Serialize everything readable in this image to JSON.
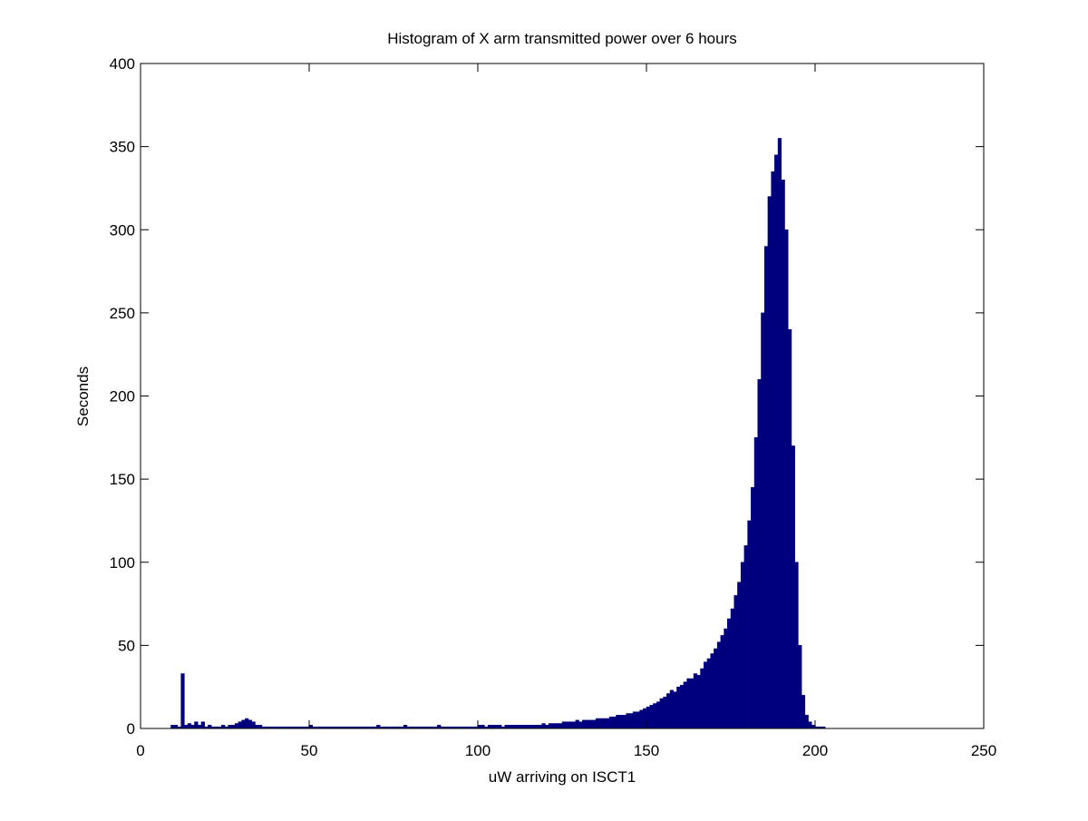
{
  "chart_data": {
    "type": "histogram",
    "title": "Histogram of X arm transmitted power over 6 hours",
    "x_label": "uW arriving on ISCT1",
    "y_label": "Seconds",
    "color": "#00007f",
    "xlim": [
      0,
      250
    ],
    "xticks": [
      0,
      50,
      100,
      150,
      200,
      250
    ],
    "ylim": [
      0,
      400
    ],
    "yticks": [
      0,
      50,
      100,
      150,
      200,
      250,
      300,
      350,
      400
    ],
    "bins": [
      9,
      10,
      11,
      12,
      13,
      14,
      15,
      16,
      17,
      18,
      19,
      20,
      21,
      22,
      23,
      24,
      25,
      26,
      27,
      28,
      29,
      30,
      31,
      32,
      33,
      34,
      35,
      36,
      37,
      38,
      39,
      40,
      41,
      42,
      43,
      44,
      45,
      46,
      47,
      48,
      49,
      50,
      51,
      52,
      53,
      54,
      55,
      56,
      57,
      58,
      59,
      60,
      61,
      62,
      63,
      64,
      65,
      66,
      67,
      68,
      69,
      70,
      71,
      72,
      73,
      74,
      75,
      76,
      77,
      78,
      79,
      80,
      81,
      82,
      83,
      84,
      85,
      86,
      87,
      88,
      89,
      90,
      91,
      92,
      93,
      94,
      95,
      96,
      97,
      98,
      99,
      100,
      101,
      102,
      103,
      104,
      105,
      106,
      107,
      108,
      109,
      110,
      111,
      112,
      113,
      114,
      115,
      116,
      117,
      118,
      119,
      120,
      121,
      122,
      123,
      124,
      125,
      126,
      127,
      128,
      129,
      130,
      131,
      132,
      133,
      134,
      135,
      136,
      137,
      138,
      139,
      140,
      141,
      142,
      143,
      144,
      145,
      146,
      147,
      148,
      149,
      150,
      151,
      152,
      153,
      154,
      155,
      156,
      157,
      158,
      159,
      160,
      161,
      162,
      163,
      164,
      165,
      166,
      167,
      168,
      169,
      170,
      171,
      172,
      173,
      174,
      175,
      176,
      177,
      178,
      179,
      180,
      181,
      182,
      183,
      184,
      185,
      186,
      187,
      188,
      189,
      190,
      191,
      192,
      193,
      194,
      195,
      196,
      197,
      198,
      199,
      200,
      201,
      202,
      203
    ],
    "values": [
      2,
      2,
      1,
      33,
      2,
      3,
      2,
      4,
      2,
      4,
      1,
      2,
      1,
      1,
      1,
      2,
      1,
      2,
      2,
      3,
      4,
      5,
      6,
      5,
      4,
      2,
      2,
      1,
      1,
      1,
      1,
      1,
      1,
      1,
      1,
      1,
      1,
      1,
      1,
      1,
      1,
      2,
      1,
      1,
      1,
      1,
      1,
      1,
      1,
      1,
      1,
      1,
      1,
      1,
      1,
      1,
      1,
      1,
      1,
      1,
      1,
      2,
      1,
      1,
      1,
      1,
      1,
      1,
      1,
      2,
      1,
      1,
      1,
      1,
      1,
      1,
      1,
      1,
      1,
      2,
      1,
      1,
      1,
      1,
      1,
      1,
      1,
      1,
      1,
      1,
      1,
      2,
      2,
      1,
      2,
      2,
      2,
      2,
      1,
      2,
      2,
      2,
      2,
      2,
      2,
      2,
      2,
      2,
      2,
      2,
      3,
      2,
      3,
      3,
      3,
      3,
      4,
      4,
      4,
      4,
      5,
      4,
      5,
      5,
      5,
      5,
      6,
      6,
      6,
      6,
      7,
      7,
      8,
      8,
      8,
      9,
      9,
      10,
      10,
      11,
      12,
      13,
      14,
      15,
      16,
      18,
      19,
      21,
      23,
      22,
      25,
      26,
      28,
      30,
      30,
      33,
      32,
      36,
      40,
      42,
      45,
      48,
      52,
      56,
      60,
      66,
      72,
      80,
      88,
      100,
      110,
      125,
      145,
      175,
      210,
      250,
      290,
      320,
      335,
      345,
      355,
      330,
      300,
      240,
      170,
      100,
      50,
      20,
      8,
      4,
      2,
      1,
      1,
      1
    ]
  }
}
